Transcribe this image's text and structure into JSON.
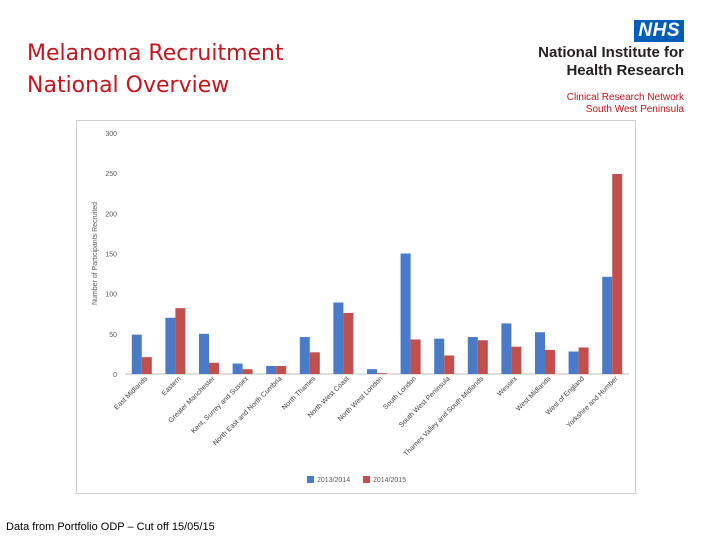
{
  "slide": {
    "title_line1": "Melanoma Recruitment",
    "title_line2": "National Overview",
    "footnote": "Data from Portfolio ODP – Cut off 15/05/15"
  },
  "logo": {
    "nhs": "NHS",
    "line1": "National Institute for",
    "line2": "Health Research",
    "line3": "Clinical Research Network",
    "line4": "South West Peninsula"
  },
  "chart_data": {
    "type": "bar",
    "title": "",
    "xlabel": "",
    "ylabel": "Number of Participants Recruited",
    "ylim": [
      0,
      300
    ],
    "yticks": [
      0,
      50,
      100,
      150,
      200,
      250,
      300
    ],
    "grid": false,
    "legend_position": "bottom",
    "categories": [
      "East Midlands",
      "Eastern",
      "Greater Manchester",
      "Kent, Surrey and Sussex",
      "North East and North Cumbria",
      "North Thames",
      "North West Coast",
      "North West London",
      "South London",
      "South West Peninsula",
      "Thames Valley and South Midlands",
      "Wessex",
      "West Midlands",
      "West of England",
      "Yorkshire and Humber"
    ],
    "series": [
      {
        "name": "2013/2014",
        "color": "#4a7bc8",
        "values": [
          49,
          70,
          50,
          13,
          10,
          46,
          89,
          6,
          150,
          44,
          46,
          63,
          52,
          28,
          121
        ]
      },
      {
        "name": "2014/2015",
        "color": "#c0504d",
        "values": [
          21,
          82,
          14,
          6,
          10,
          27,
          76,
          1,
          43,
          23,
          42,
          34,
          30,
          33,
          249
        ]
      }
    ]
  }
}
